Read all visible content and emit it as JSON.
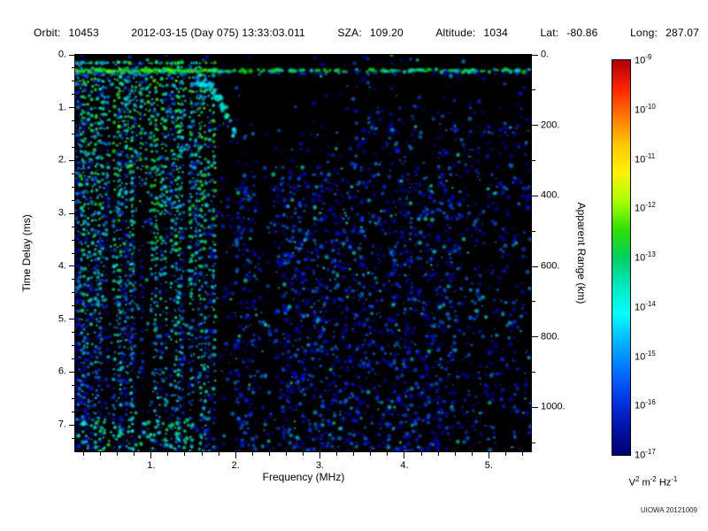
{
  "header": {
    "fields": [
      {
        "label": "Orbit:",
        "value": "10453"
      },
      {
        "label": "",
        "value": "2012-03-15 (Day 075) 13:33:03.011"
      },
      {
        "label": "SZA:",
        "value": "109.20"
      },
      {
        "label": "Altitude:",
        "value": "1034"
      },
      {
        "label": "Lat:",
        "value": "-80.86"
      },
      {
        "label": "Long:",
        "value": "287.07"
      }
    ]
  },
  "chart_data": {
    "type": "heatmap",
    "title": "",
    "xlabel": "Frequency (MHz)",
    "ylabel": "Time Delay (ms)",
    "y2label": "Apparent Range (km)",
    "x_range": [
      0.1,
      5.5
    ],
    "x_ticks": [
      1,
      2,
      3,
      4,
      5
    ],
    "x_tick_labels": [
      "1.",
      "2.",
      "3.",
      "4.",
      "5."
    ],
    "x_minor_step": 0.2,
    "y_range": [
      0,
      7.5
    ],
    "y_ticks": [
      0,
      1,
      2,
      3,
      4,
      5,
      6,
      7
    ],
    "y_tick_labels": [
      "0.",
      "1.",
      "2.",
      "3.",
      "4.",
      "5.",
      "6.",
      "7."
    ],
    "y_minor_step": 0.25,
    "y2_ticks_km": [
      0,
      200,
      400,
      600,
      800,
      1000
    ],
    "y2_tick_labels": [
      "0.",
      "200.",
      "400.",
      "600.",
      "800.",
      "1000."
    ],
    "km_per_ms": 149.896,
    "background": "#000000",
    "grid": false,
    "colorbar": {
      "tick_exponents": [
        "-9",
        "-10",
        "-11",
        "-12",
        "-13",
        "-14",
        "-15",
        "-16",
        "-17"
      ],
      "tick_labels": [
        "10⁻⁹",
        "10⁻¹⁰",
        "10⁻¹¹",
        "10⁻¹²",
        "10⁻¹³",
        "10⁻¹⁴",
        "10⁻¹⁵",
        "10⁻¹⁶",
        "10⁻¹⁷"
      ],
      "unit_parts": [
        [
          "V",
          "2"
        ],
        [
          " m",
          "-2"
        ],
        [
          " Hz",
          "-1"
        ]
      ],
      "unit_text": "V² m⁻² Hz⁻¹",
      "colors_top_to_bottom": [
        "#b00000",
        "#ff2200",
        "#ff7700",
        "#ffc800",
        "#fff200",
        "#a8ff00",
        "#30e000",
        "#00d060",
        "#00e8c0",
        "#00ffff",
        "#00b4ff",
        "#0072ff",
        "#0038e8",
        "#0014a8",
        "#000070"
      ]
    },
    "features": {
      "surface_echo": {
        "time_delay_ms": 0.3,
        "freq_range_mhz": [
          0.1,
          5.5
        ],
        "description": "bright green-cyan horizontal band across all frequencies near zero delay, becoming patchy above ~2 MHz"
      },
      "ionospheric_echoes": {
        "freq_range_mhz": [
          0.1,
          1.78
        ],
        "time_delay_range_ms": [
          0,
          7.5
        ],
        "description": "dense bright vertical striations (green/cyan fading to blue with depth) filling the low-frequency band, ending abruptly near 1.7 MHz"
      },
      "diffuse_scatter": {
        "freq_range_mhz": [
          1.7,
          5.5
        ],
        "time_delay_range_ms": [
          0.5,
          7.5
        ],
        "description": "sparse faint dark-blue speckle, denser between 2-3.6 MHz and 3.8-4.6 MHz at delays greater than 2 ms, darker lane near 2.35 MHz"
      }
    }
  },
  "footer": {
    "credit": "UIOWA 20121009"
  }
}
